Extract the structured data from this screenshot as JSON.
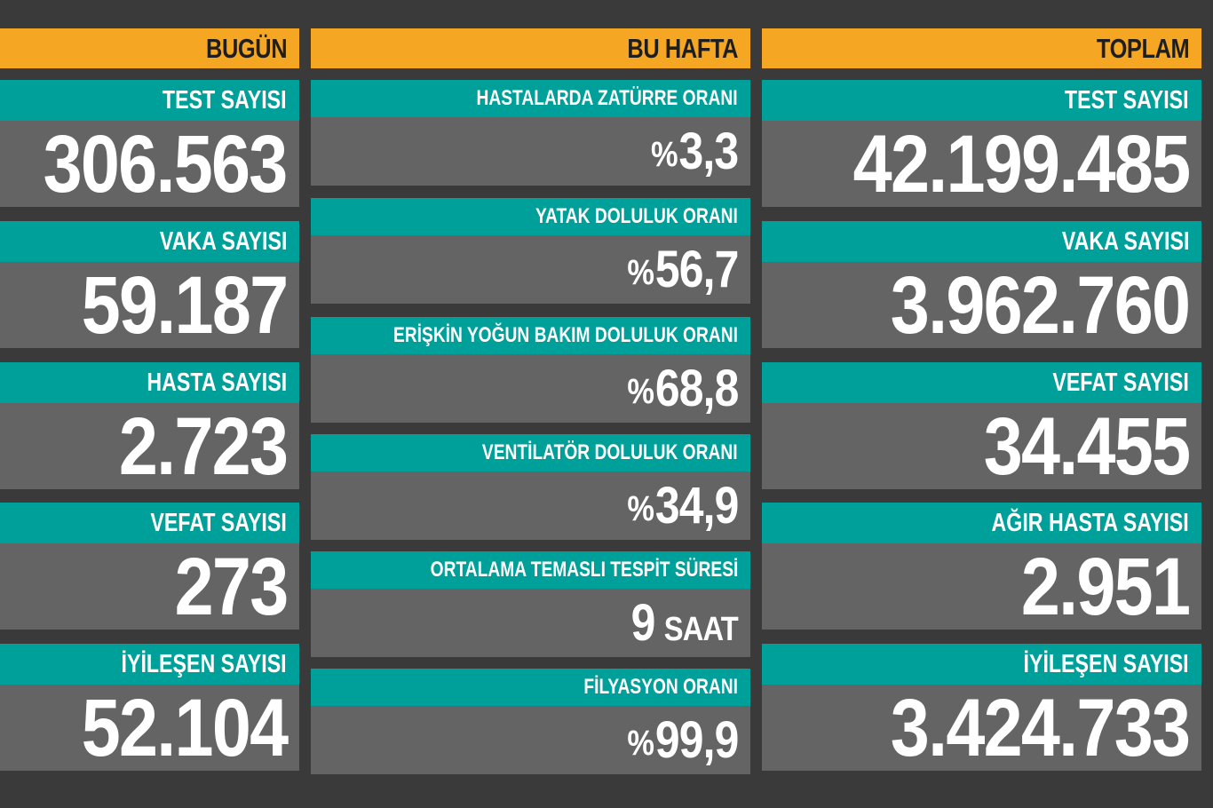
{
  "today": {
    "header": "BUGÜN",
    "items": [
      {
        "label": "TEST SAYISI",
        "value": "306.563"
      },
      {
        "label": "VAKA SAYISI",
        "value": "59.187"
      },
      {
        "label": "HASTA SAYISI",
        "value": "2.723"
      },
      {
        "label": "VEFAT SAYISI",
        "value": "273"
      },
      {
        "label": "İYİLEŞEN SAYISI",
        "value": "52.104"
      }
    ]
  },
  "week": {
    "header": "BU HAFTA",
    "items": [
      {
        "label": "HASTALARDA ZATÜRRE ORANI",
        "prefix": "%",
        "value": "3,3"
      },
      {
        "label": "YATAK DOLULUK ORANI",
        "prefix": "%",
        "value": "56,7"
      },
      {
        "label": "ERİŞKİN YOĞUN BAKIM DOLULUK ORANI",
        "prefix": "%",
        "value": "68,8"
      },
      {
        "label": "VENTİLATÖR DOLULUK ORANI",
        "prefix": "%",
        "value": "34,9"
      },
      {
        "label": "ORTALAMA TEMASLI TESPİT SÜRESİ",
        "value": "9",
        "unit": "SAAT"
      },
      {
        "label": "FİLYASYON ORANI",
        "prefix": "%",
        "value": "99,9"
      }
    ]
  },
  "total": {
    "header": "TOPLAM",
    "items": [
      {
        "label": "TEST SAYISI",
        "value": "42.199.485"
      },
      {
        "label": "VAKA SAYISI",
        "value": "3.962.760"
      },
      {
        "label": "VEFAT SAYISI",
        "value": "34.455"
      },
      {
        "label": "AĞIR HASTA SAYISI",
        "value": "2.951"
      },
      {
        "label": "İYİLEŞEN SAYISI",
        "value": "3.424.733"
      }
    ]
  },
  "colors": {
    "background": "#3a3a3a",
    "header": "#f5a623",
    "label": "#00a09a",
    "value_panel": "#646464"
  }
}
